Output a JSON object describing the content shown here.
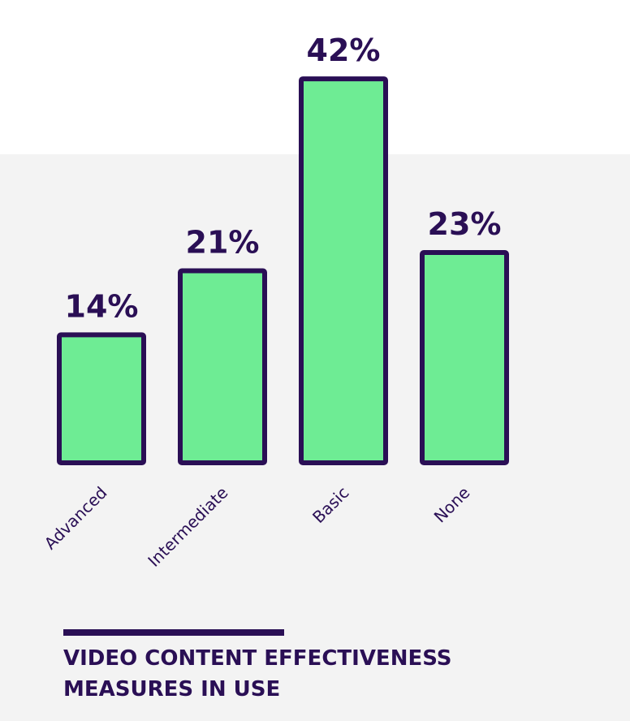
{
  "chart_data": {
    "type": "bar",
    "title": "VIDEO CONTENT EFFECTIVENESS MEASURES IN USE",
    "categories": [
      "Advanced",
      "Intermediate",
      "Basic",
      "None"
    ],
    "values": [
      14,
      21,
      42,
      23
    ],
    "value_labels": [
      "14%",
      "21%",
      "42%",
      "23%"
    ],
    "color": "#6eec94",
    "edge_color": "#2a0f55"
  }
}
